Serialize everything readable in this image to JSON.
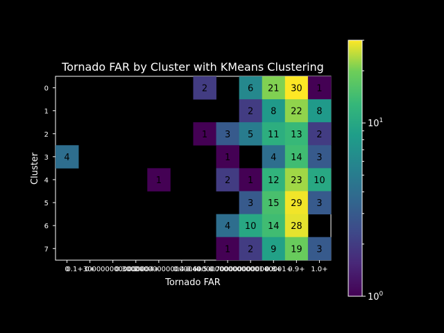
{
  "chart_data": {
    "type": "heatmap",
    "title": "Tornado FAR by Cluster with KMeans Clustering",
    "xlabel": "Tornado FAR",
    "ylabel": "Cluster",
    "x_categories": [
      "0",
      "0+",
      "0.1+",
      "0.2+",
      "0.3+",
      "0.4+",
      "0.5+",
      "0.6+",
      "0.7+",
      "0.8+",
      "0.9+",
      "1.0+"
    ],
    "x_tick_labels": [
      "0",
      "0+",
      "0.1+3000000000000004+",
      "0.2+",
      "0.30000000000000004+",
      "0.4+",
      "0.5+",
      "0.6000000000000001+",
      "0.7000000000000001+",
      "0.8+",
      "0.9+",
      "1.0+"
    ],
    "y_categories": [
      "0",
      "1",
      "2",
      "3",
      "4",
      "5",
      "6",
      "7"
    ],
    "values": [
      [
        null,
        null,
        null,
        null,
        null,
        null,
        2,
        null,
        6,
        21,
        30,
        1
      ],
      [
        null,
        null,
        null,
        null,
        null,
        null,
        null,
        null,
        2,
        8,
        22,
        8
      ],
      [
        null,
        null,
        null,
        null,
        null,
        null,
        1,
        3,
        5,
        11,
        13,
        2
      ],
      [
        4,
        null,
        null,
        null,
        null,
        null,
        null,
        1,
        null,
        4,
        14,
        3
      ],
      [
        null,
        null,
        null,
        null,
        1,
        null,
        null,
        2,
        1,
        12,
        23,
        10
      ],
      [
        null,
        null,
        null,
        null,
        null,
        null,
        null,
        null,
        3,
        15,
        29,
        3
      ],
      [
        null,
        null,
        null,
        null,
        null,
        null,
        null,
        4,
        10,
        14,
        28,
        null
      ],
      [
        null,
        null,
        null,
        null,
        null,
        null,
        null,
        1,
        2,
        9,
        19,
        3
      ]
    ],
    "colorbar": {
      "scale": "log",
      "min": 1,
      "max": 30,
      "colormap": "viridis",
      "major_ticks": [
        1,
        10
      ],
      "major_tick_labels": [
        "10^0",
        "10^1"
      ]
    },
    "grid": false,
    "background": "#000000"
  }
}
